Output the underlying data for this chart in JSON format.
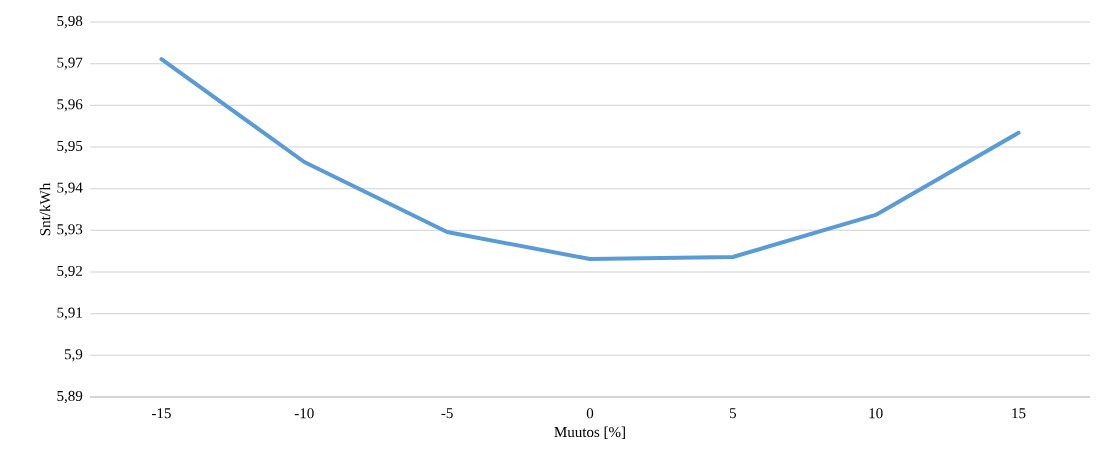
{
  "chart_data": {
    "type": "line",
    "xlabel": "Muutos [%]",
    "ylabel": "Snt/kWh",
    "categories": [
      "-15",
      "-10",
      "-5",
      "0",
      "5",
      "10",
      "15"
    ],
    "values": [
      5.9711,
      5.9464,
      5.9296,
      5.9231,
      5.9236,
      5.9337,
      5.9534
    ],
    "color": "#5b9bd5",
    "ylim": [
      5.89,
      5.98
    ],
    "yticks": [
      {
        "value": 5.89,
        "label": "5,89"
      },
      {
        "value": 5.9,
        "label": "5,9"
      },
      {
        "value": 5.91,
        "label": "5,91"
      },
      {
        "value": 5.92,
        "label": "5,92"
      },
      {
        "value": 5.93,
        "label": "5,93"
      },
      {
        "value": 5.94,
        "label": "5,94"
      },
      {
        "value": 5.95,
        "label": "5,95"
      },
      {
        "value": 5.96,
        "label": "5,96"
      },
      {
        "value": 5.97,
        "label": "5,97"
      },
      {
        "value": 5.98,
        "label": "5,98"
      }
    ],
    "grid": "y"
  }
}
